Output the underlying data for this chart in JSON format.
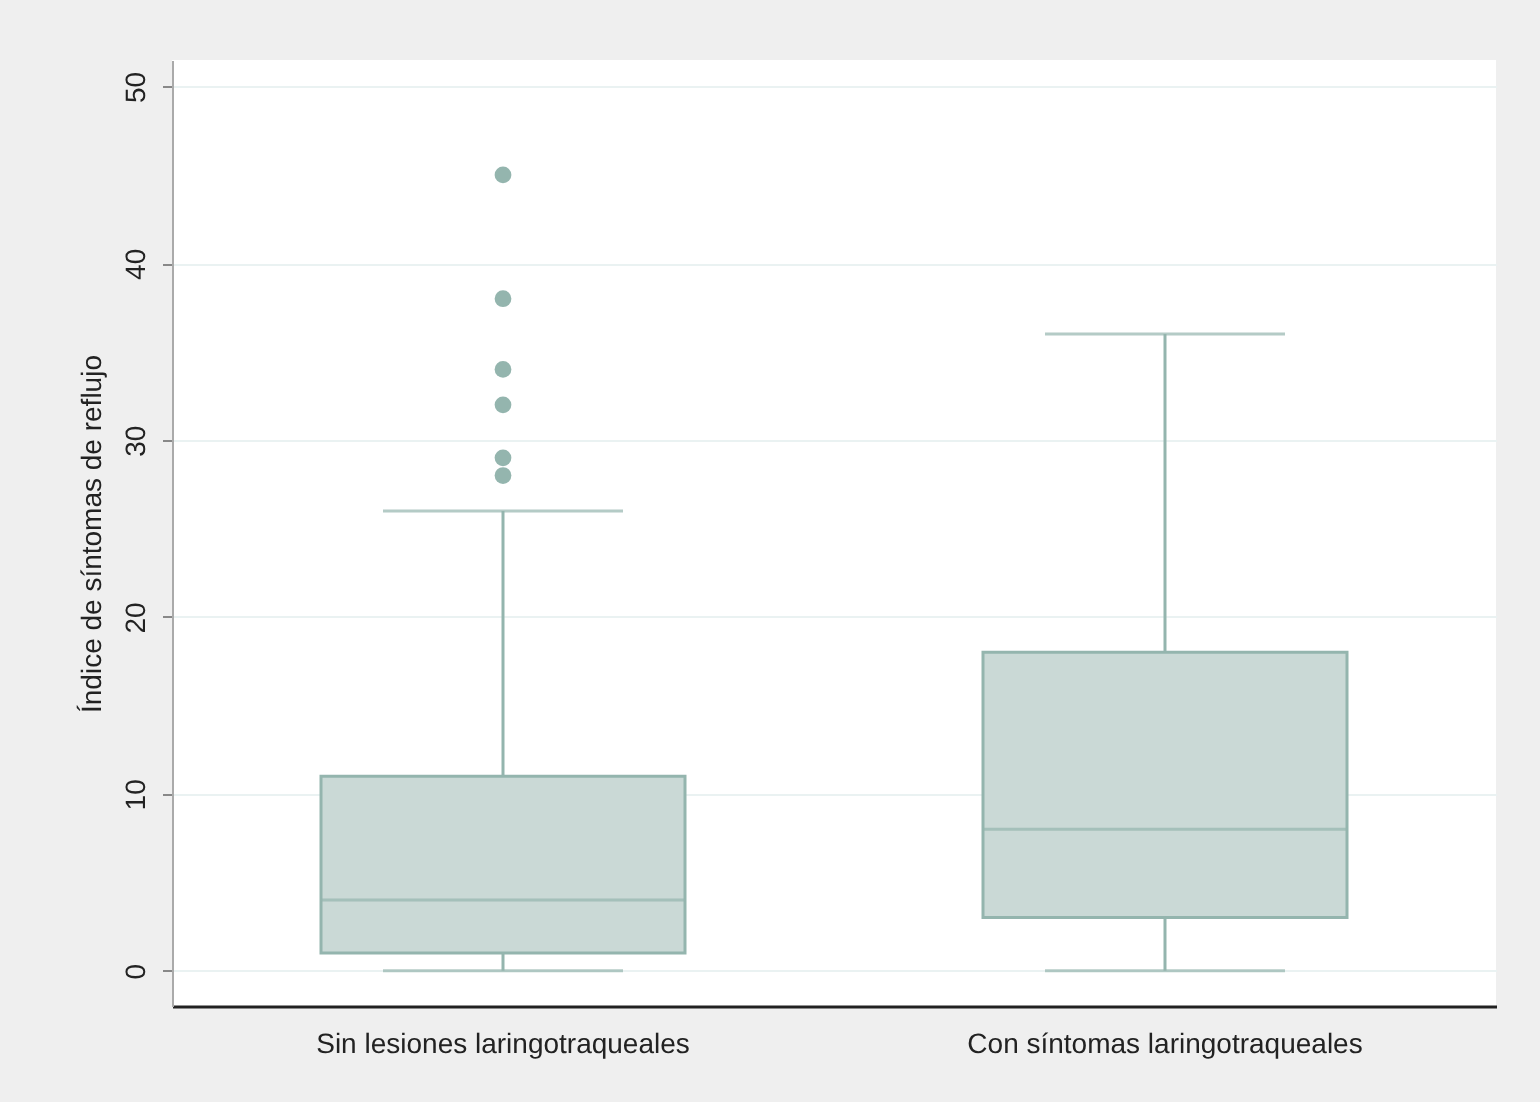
{
  "chart_data": {
    "type": "box",
    "ylabel": "Índice de síntomas de reflujo",
    "categories": [
      "Sin lesiones laringotraqueales",
      "Con síntomas laringotraqueales"
    ],
    "boxes": [
      {
        "low": 0,
        "q1": 1,
        "median": 4,
        "q3": 11,
        "high": 26,
        "outliers": [
          28,
          29,
          32,
          34,
          38,
          45
        ]
      },
      {
        "low": 0,
        "q1": 3,
        "median": 8,
        "q3": 18,
        "high": 36
      }
    ],
    "color": "#cad9d6",
    "ylim": [
      -2,
      51.5
    ],
    "yticks": [
      0,
      10,
      20,
      30,
      40,
      50
    ],
    "grid": "y"
  }
}
